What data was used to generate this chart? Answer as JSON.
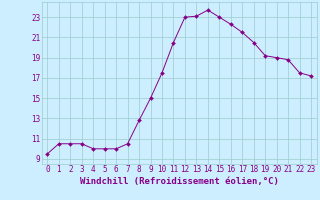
{
  "x": [
    0,
    1,
    2,
    3,
    4,
    5,
    6,
    7,
    8,
    9,
    10,
    11,
    12,
    13,
    14,
    15,
    16,
    17,
    18,
    19,
    20,
    21,
    22,
    23
  ],
  "y": [
    9.5,
    10.5,
    10.5,
    10.5,
    10.0,
    10.0,
    10.0,
    10.5,
    12.8,
    15.0,
    17.5,
    20.5,
    23.0,
    23.1,
    23.7,
    23.0,
    22.3,
    21.5,
    20.5,
    19.2,
    19.0,
    18.8,
    17.5,
    17.2
  ],
  "line_color": "#880088",
  "marker": "D",
  "marker_size": 2.0,
  "bg_color": "#cceeff",
  "grid_color": "#99cccc",
  "xlabel": "Windchill (Refroidissement éolien,°C)",
  "xlabel_color": "#880088",
  "ylabel_ticks": [
    9,
    11,
    13,
    15,
    17,
    19,
    21,
    23
  ],
  "xtick_labels": [
    "0",
    "1",
    "2",
    "3",
    "4",
    "5",
    "6",
    "7",
    "8",
    "9",
    "10",
    "11",
    "12",
    "13",
    "14",
    "15",
    "16",
    "17",
    "18",
    "19",
    "20",
    "21",
    "22",
    "23"
  ],
  "ylim": [
    8.5,
    24.5
  ],
  "xlim": [
    -0.5,
    23.5
  ],
  "tick_color": "#880088",
  "tick_fontsize": 5.5,
  "xlabel_fontsize": 6.5
}
